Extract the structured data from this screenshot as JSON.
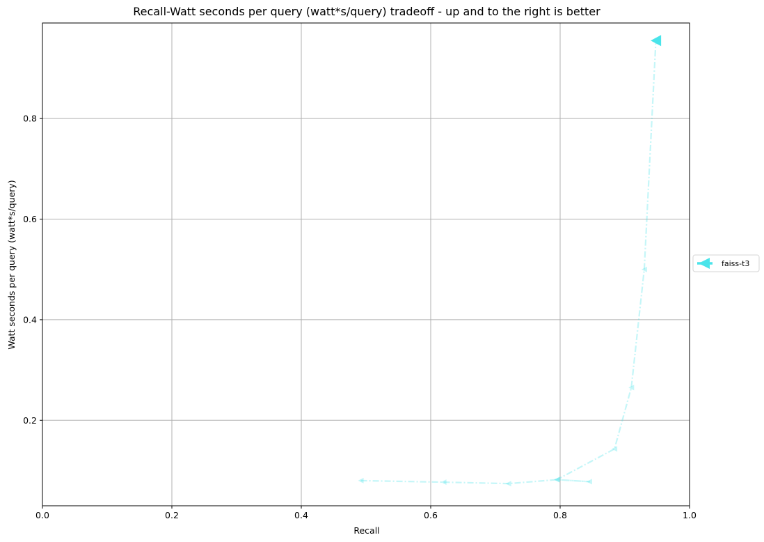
{
  "chart_data": {
    "type": "line",
    "title": "Recall-Watt seconds per query (watt*s/query) tradeoff - up and to the right is better",
    "xlabel": "Recall",
    "ylabel": "Watt seconds per query (watt*s/query)",
    "xlim": [
      0.0,
      1.0
    ],
    "ylim": [
      0.03,
      0.99
    ],
    "xticks": [
      "0.0",
      "0.2",
      "0.4",
      "0.6",
      "0.8",
      "1.0"
    ],
    "yticks": [
      "0.2",
      "0.4",
      "0.6",
      "0.8"
    ],
    "grid": true,
    "legend_position": "right-outside",
    "series": [
      {
        "name": "faiss-t3",
        "color": "#4ae4ea",
        "line_style": "dash-dot",
        "marker": "triangle-left",
        "points": [
          {
            "x": 0.492,
            "y": 0.08
          },
          {
            "x": 0.62,
            "y": 0.077
          },
          {
            "x": 0.72,
            "y": 0.074
          },
          {
            "x": 0.795,
            "y": 0.082
          },
          {
            "x": 0.845,
            "y": 0.078
          },
          {
            "x": 0.795,
            "y": 0.082
          },
          {
            "x": 0.884,
            "y": 0.143
          },
          {
            "x": 0.91,
            "y": 0.265
          },
          {
            "x": 0.93,
            "y": 0.5
          },
          {
            "x": 0.948,
            "y": 0.955
          }
        ]
      }
    ]
  }
}
